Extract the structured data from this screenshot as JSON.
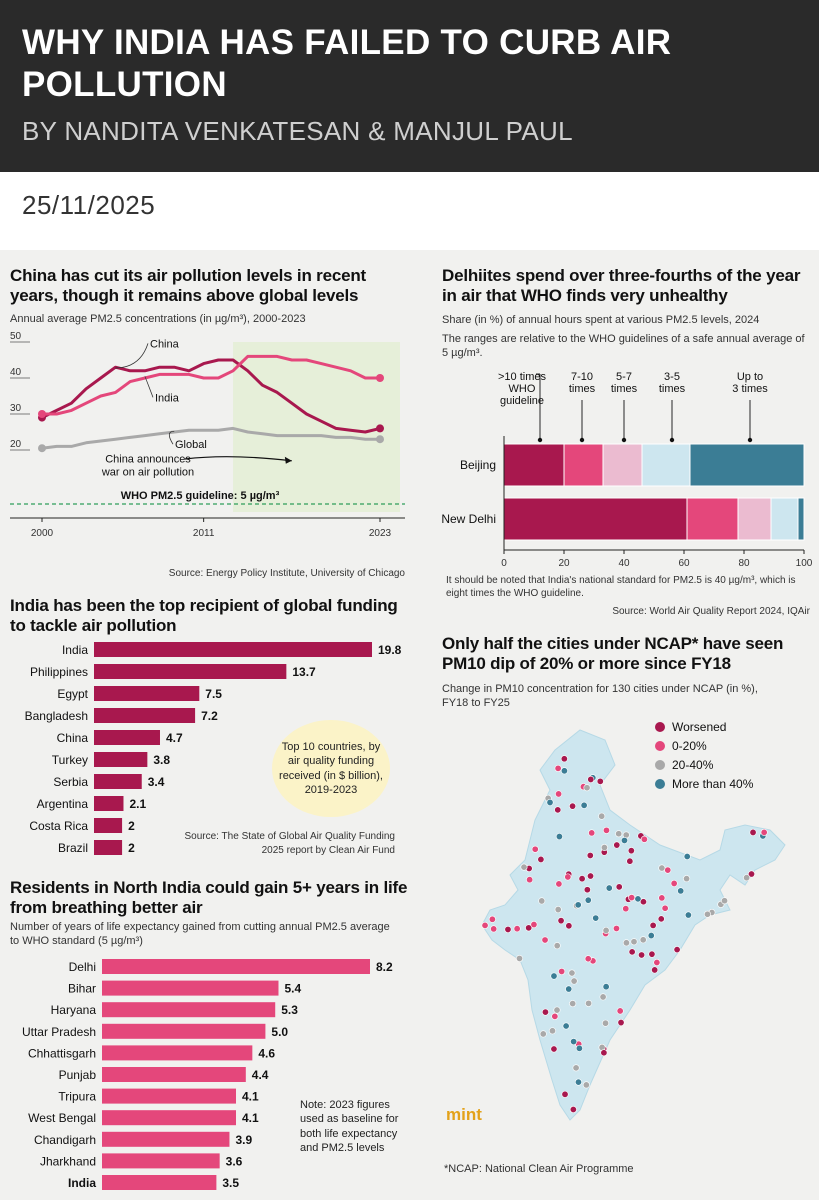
{
  "header": {
    "title": "WHY INDIA HAS FAILED TO CURB AIR POLLUTION",
    "byline": "BY NANDITA VENKATESAN & MANJUL PAUL",
    "date": "25/11/2025"
  },
  "colors": {
    "maroon": "#a8184e",
    "pink": "#e4477b",
    "lightpink": "#ebbbd0",
    "lightblue": "#cde6ef",
    "teal": "#3b7d95",
    "grey": "#a9a9a9",
    "green": "#2f9e5a",
    "shade": "#e6efd9"
  },
  "chart_data": [
    {
      "id": "china_india_line",
      "type": "line",
      "title": "China has cut its air pollution levels in recent years, though it remains above global levels",
      "subtitle": "Annual average PM2.5 concentrations (in µg/m³), 2000-2023",
      "x": [
        2000,
        2001,
        2002,
        2003,
        2004,
        2005,
        2006,
        2007,
        2008,
        2009,
        2010,
        2011,
        2012,
        2013,
        2014,
        2015,
        2016,
        2017,
        2018,
        2019,
        2020,
        2021,
        2022,
        2023
      ],
      "series": [
        {
          "name": "China",
          "values": [
            29,
            31,
            33,
            37,
            40,
            43,
            42,
            42,
            43,
            43,
            42,
            44,
            45,
            45,
            42,
            38,
            36,
            33,
            30,
            28,
            26,
            25.5,
            25,
            26
          ]
        },
        {
          "name": "India",
          "values": [
            30,
            30,
            31,
            33,
            35,
            36,
            39,
            40,
            41,
            41,
            41,
            40,
            40,
            42,
            46,
            46,
            46,
            45,
            45,
            44,
            43,
            42,
            40,
            40
          ]
        },
        {
          "name": "Global",
          "values": [
            20.5,
            21,
            21,
            22,
            22.5,
            23,
            23.5,
            24,
            24.5,
            25,
            25.5,
            25.5,
            25.5,
            26,
            25,
            24.5,
            24,
            24,
            24,
            24,
            23.5,
            23.5,
            23,
            23
          ]
        }
      ],
      "yticks": [
        "20",
        "30",
        "40",
        "50"
      ],
      "xticks": [
        "2000",
        "2011",
        "2023"
      ],
      "ylim": [
        5,
        50
      ],
      "guideline_value": 5,
      "guideline_label": "WHO PM2.5 guideline: 5 µg/m³",
      "annotation": "China announces war on air pollution",
      "annotation_year": 2013,
      "source": "Source: Energy Policy Institute, University of Chicago"
    },
    {
      "id": "hours_stacked",
      "type": "bar",
      "title": "Delhiites spend over three-fourths of the year in air that WHO finds very unhealthy",
      "subtitle1": "Share (in %) of annual hours spent at various PM2.5 levels, 2024",
      "subtitle2": "The ranges are relative to the WHO guidelines of a safe annual average of 5 µg/m³.",
      "categories": [
        "Beijing",
        "New Delhi"
      ],
      "series": [
        {
          "name": ">10 times WHO guideline",
          "values": [
            20,
            61
          ]
        },
        {
          "name": "7-10 times",
          "values": [
            13,
            17
          ]
        },
        {
          "name": "5-7 times",
          "values": [
            13,
            11
          ]
        },
        {
          "name": "3-5 times",
          "values": [
            16,
            9
          ]
        },
        {
          "name": "Up to 3 times",
          "values": [
            38,
            2
          ]
        }
      ],
      "legend_labels": [
        [
          ">10 times",
          "WHO",
          "guideline"
        ],
        [
          "7-10",
          "times"
        ],
        [
          "5-7",
          "times"
        ],
        [
          "3-5",
          "times"
        ],
        [
          "Up to",
          "3 times"
        ]
      ],
      "legend_pointers": [
        12,
        26,
        40,
        56,
        82
      ],
      "xticks": [
        "0",
        "20",
        "40",
        "60",
        "80",
        "100"
      ],
      "xlim": [
        0,
        100
      ],
      "note": "It should be noted that India's national standard for PM2.5 is 40 µg/m³, which is eight times the WHO guideline.",
      "source": "Source: World Air Quality Report 2024, IQAir"
    },
    {
      "id": "funding_bar",
      "type": "bar",
      "title": "India has been the top recipient of global funding to tackle air pollution",
      "categories": [
        "India",
        "Philippines",
        "Egypt",
        "Bangladesh",
        "China",
        "Turkey",
        "Serbia",
        "Argentina",
        "Costa Rica",
        "Brazil"
      ],
      "values": [
        19.8,
        13.7,
        7.5,
        7.2,
        4.7,
        3.8,
        3.4,
        2.1,
        2,
        2
      ],
      "labels": [
        "19.8",
        "13.7",
        "7.5",
        "7.2",
        "4.7",
        "3.8",
        "3.4",
        "2.1",
        "2",
        "2"
      ],
      "callout": "Top 10 countries, by air quality funding received (in $ billion), 2019-2023",
      "source": "Source: The State of Global Air Quality Funding 2025 report by Clean Air Fund"
    },
    {
      "id": "life_bar",
      "type": "bar",
      "title": "Residents in North India could gain 5+ years in life from breathing better air",
      "subtitle": "Number of years of life expectancy gained from cutting annual PM2.5 average to WHO standard (5 µg/m³)",
      "categories": [
        "Delhi",
        "Bihar",
        "Haryana",
        "Uttar Pradesh",
        "Chhattisgarh",
        "Punjab",
        "Tripura",
        "West Bengal",
        "Chandigarh",
        "Jharkhand",
        "India"
      ],
      "values": [
        8.2,
        5.4,
        5.3,
        5.0,
        4.6,
        4.4,
        4.1,
        4.1,
        3.9,
        3.6,
        3.5
      ],
      "labels": [
        "8.2",
        "5.4",
        "5.3",
        "5.0",
        "4.6",
        "4.4",
        "4.1",
        "4.1",
        "3.9",
        "3.6",
        "3.5"
      ],
      "note": "Note: 2023 figures used as baseline for both life expectancy and PM2.5 levels"
    },
    {
      "id": "ncap_map",
      "type": "scatter",
      "title": "Only half the cities under NCAP* have seen PM10 dip of 20% or more since FY18",
      "subtitle": "Change in PM10 concentration for 130 cities under NCAP (in %), FY18 to FY25",
      "legend": [
        "Worsened",
        "0-20%",
        "20-40%",
        "More than 40%"
      ],
      "footnote": "*NCAP: National Clean Air Programme",
      "logo": "mint"
    }
  ]
}
